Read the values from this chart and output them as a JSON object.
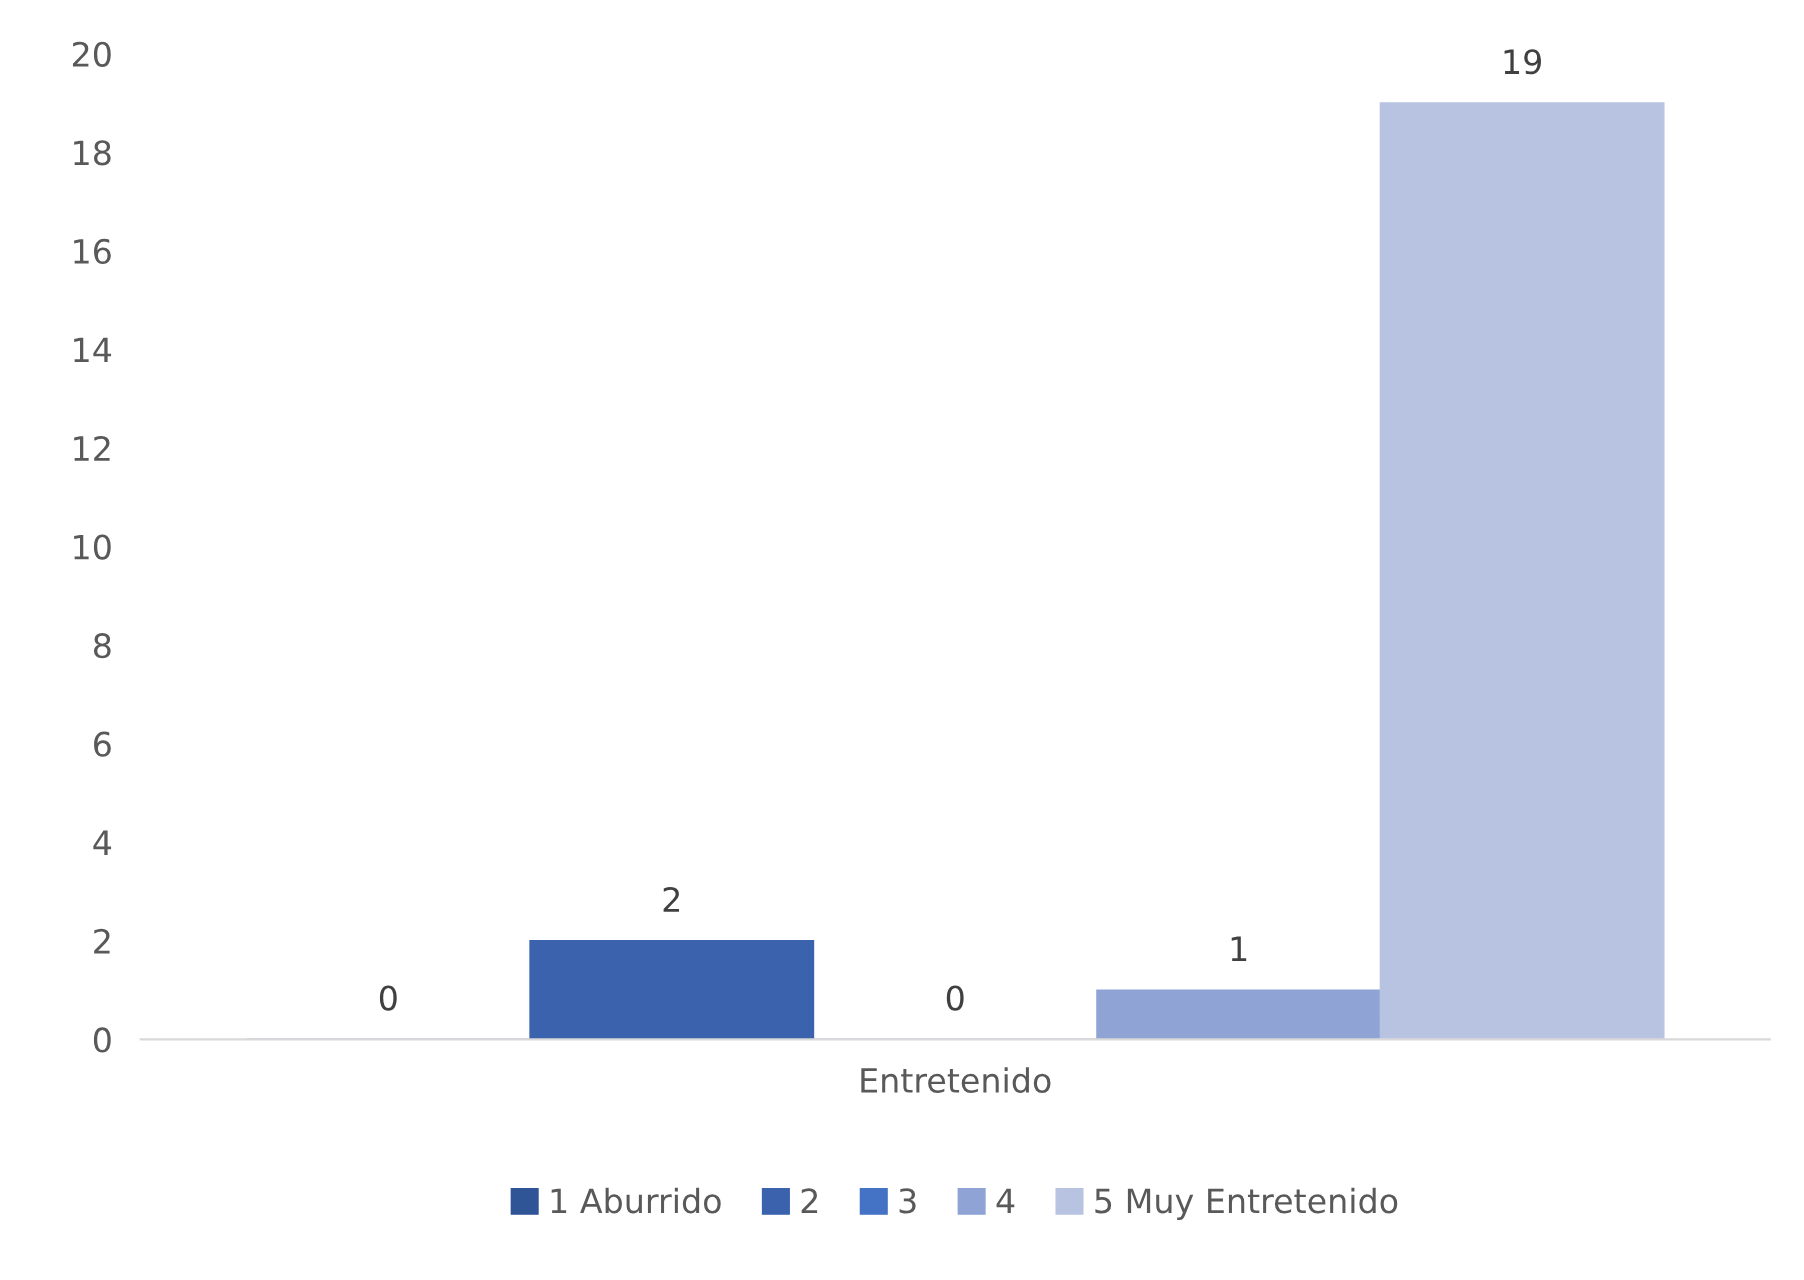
{
  "chart_data": {
    "type": "bar",
    "categories": [
      "Entretenido"
    ],
    "series": [
      {
        "name": "1 Aburrido",
        "color": "#2f5597",
        "values": [
          0
        ]
      },
      {
        "name": "2",
        "color": "#3a62ad",
        "values": [
          2
        ]
      },
      {
        "name": "3",
        "color": "#4472c4",
        "values": [
          0
        ]
      },
      {
        "name": "4",
        "color": "#8fa3d5",
        "values": [
          1
        ]
      },
      {
        "name": "5 Muy Entretenido",
        "color": "#b8c3e2",
        "values": [
          19
        ]
      }
    ],
    "ylim": [
      0,
      20
    ],
    "yticks": [
      0,
      2,
      4,
      6,
      8,
      10,
      12,
      14,
      16,
      18,
      20
    ],
    "data_labels": true,
    "grid": false,
    "legend": "bottom"
  }
}
